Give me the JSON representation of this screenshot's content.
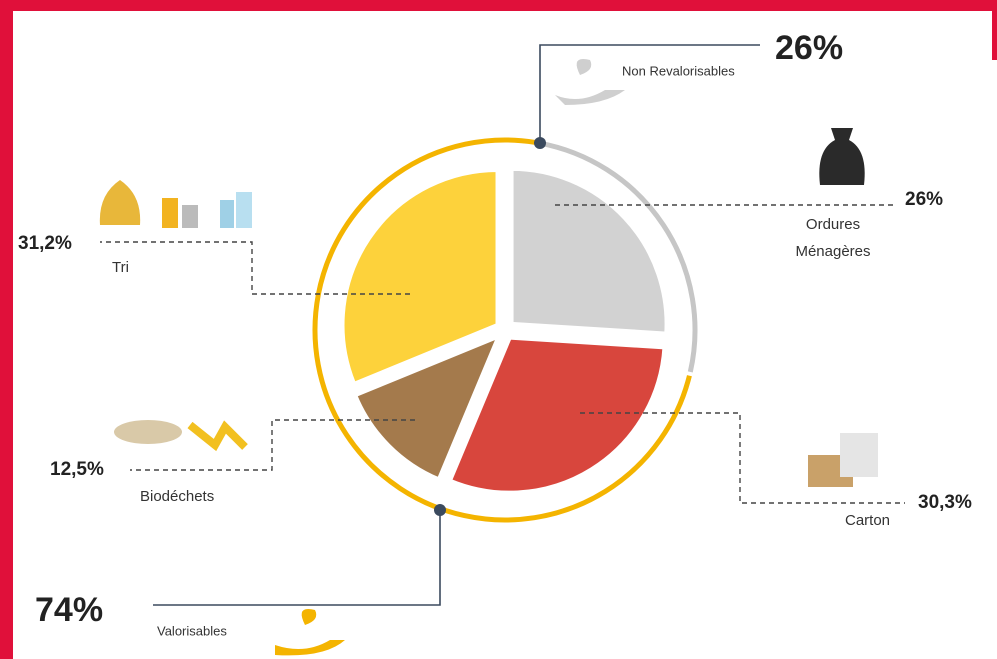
{
  "chart_data": {
    "type": "pie",
    "categories": [
      "Ordures Ménagères",
      "Carton",
      "Biodéchets",
      "Tri"
    ],
    "values": [
      26,
      30.3,
      12.5,
      31.2
    ],
    "value_labels": [
      "26%",
      "30,3%",
      "12,5%",
      "31,2%"
    ],
    "colors": [
      "#d2d2d2",
      "#d8463d",
      "#a47a4c",
      "#fdd23b"
    ],
    "groups": [
      {
        "name": "Non Revalorisables",
        "value": 26,
        "value_label": "26%",
        "color": "#c6c6c6"
      },
      {
        "name": "Valorisables",
        "value": 74,
        "value_label": "74%",
        "color": "#f4b400"
      }
    ]
  }
}
